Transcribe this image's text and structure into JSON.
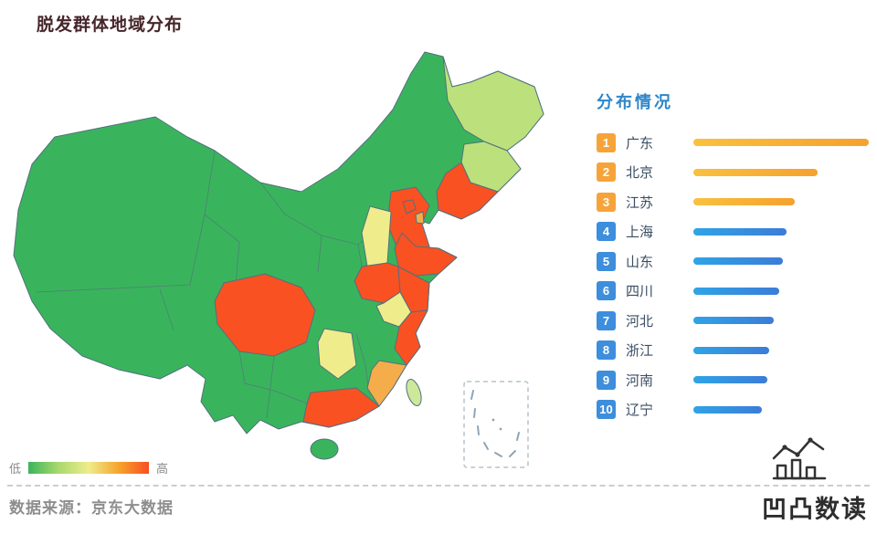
{
  "title": "脱发群体地域分布",
  "panel": {
    "heading": "分布情况",
    "items": [
      {
        "rank": "1",
        "name": "广东",
        "value": 100,
        "type": "orange"
      },
      {
        "rank": "2",
        "name": "北京",
        "value": 71,
        "type": "orange"
      },
      {
        "rank": "3",
        "name": "江苏",
        "value": 58,
        "type": "orange"
      },
      {
        "rank": "4",
        "name": "上海",
        "value": 53,
        "type": "blue"
      },
      {
        "rank": "5",
        "name": "山东",
        "value": 51,
        "type": "blue"
      },
      {
        "rank": "6",
        "name": "四川",
        "value": 49,
        "type": "blue"
      },
      {
        "rank": "7",
        "name": "河北",
        "value": 46,
        "type": "blue"
      },
      {
        "rank": "8",
        "name": "浙江",
        "value": 43,
        "type": "blue"
      },
      {
        "rank": "9",
        "name": "河南",
        "value": 42,
        "type": "blue"
      },
      {
        "rank": "10",
        "name": "辽宁",
        "value": 39,
        "type": "blue"
      }
    ]
  },
  "legend": {
    "low": "低",
    "high": "高"
  },
  "source": "数据来源：京东大数据",
  "logo": {
    "text": "凹凸数读"
  },
  "colors": {
    "green": "#3AB45C",
    "yellow_green": "#BCE17C",
    "yellow": "#EFEC8B",
    "orange": "#F5AC4B",
    "red": "#F95122",
    "taiwan": "#CDE89B",
    "border": "#51707E",
    "badge_orange": "#F6A43A",
    "badge_blue": "#3D8EDC",
    "heading_blue": "#2E86C9",
    "bar_orange": "#F5A12D",
    "bar_blue": "#3C7CD8"
  },
  "chart_data": [
    {
      "type": "heatmap",
      "subtype": "china-choropleth-map",
      "title": "脱发群体地域分布",
      "legend": {
        "low_label": "低",
        "high_label": "高",
        "scale": "green → yellow → orange → red"
      },
      "regions_red_high": [
        "广东",
        "北京",
        "江苏",
        "上海",
        "山东",
        "四川",
        "河北",
        "浙江",
        "河南",
        "辽宁"
      ],
      "regions_orange": [
        "福建",
        "天津"
      ],
      "regions_yellow": [
        "山西",
        "安徽",
        "湖南"
      ],
      "regions_yellow_green": [
        "黑龙江",
        "吉林",
        "台湾"
      ],
      "regions_green_low": "其余省份"
    },
    {
      "type": "bar",
      "orientation": "horizontal",
      "title": "分布情况",
      "categories": [
        "广东",
        "北京",
        "江苏",
        "上海",
        "山东",
        "四川",
        "河北",
        "浙江",
        "河南",
        "辽宁"
      ],
      "values": [
        100,
        71,
        58,
        53,
        51,
        49,
        46,
        43,
        42,
        39
      ],
      "value_note": "relative bar length, % of longest bar (estimated from pixels)",
      "bar_style": {
        "ranks_1_3": "orange gradient",
        "ranks_4_10": "blue gradient"
      },
      "legend_position": "right-panel ranked list"
    }
  ]
}
